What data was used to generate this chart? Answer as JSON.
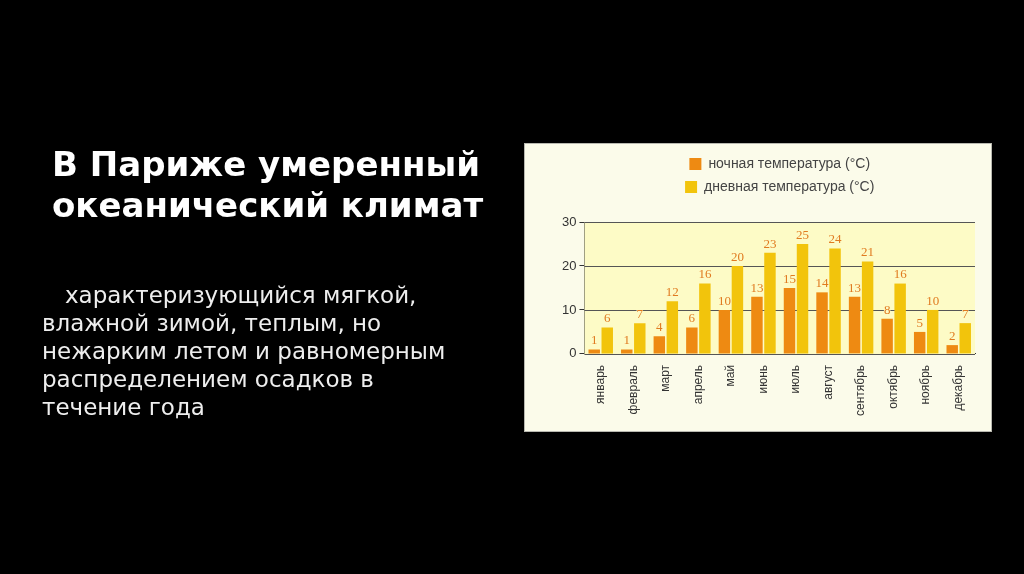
{
  "chart_data": {
    "type": "bar",
    "title": "В Париже умеренный океанический климат",
    "subtitle": "характеризующийся мягкой, влажной зимой, теплым, но нежарким летом и равномерным распределением осадков в течение года",
    "categories": [
      "январь",
      "февраль",
      "март",
      "апрель",
      "май",
      "июнь",
      "июль",
      "август",
      "сентябрь",
      "октябрь",
      "ноябрь",
      "декабрь"
    ],
    "series": [
      {
        "name": "ночная температура (°C)",
        "color": "#ee8a12",
        "values": [
          1,
          1,
          4,
          6,
          10,
          13,
          15,
          14,
          13,
          8,
          5,
          2
        ]
      },
      {
        "name": "дневная температура (°C)",
        "color": "#f2c40c",
        "values": [
          6,
          7,
          12,
          16,
          20,
          23,
          25,
          24,
          21,
          16,
          10,
          7
        ]
      }
    ],
    "ylim": [
      0,
      30
    ],
    "yticks": [
      0,
      10,
      20,
      30
    ],
    "grid": "y",
    "legend": "top",
    "data_labels": true
  }
}
